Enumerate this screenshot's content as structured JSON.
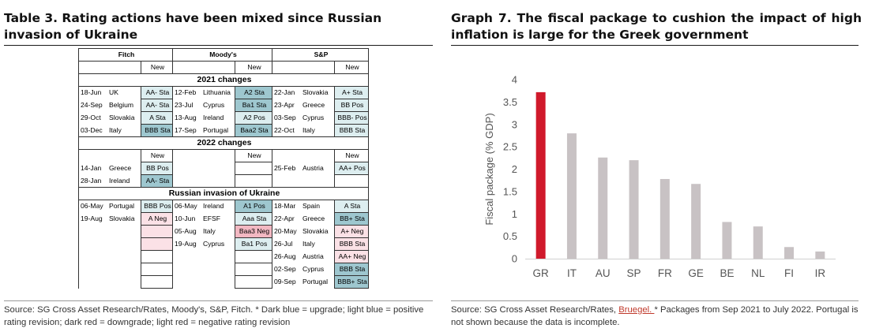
{
  "left": {
    "title": "Table 3. Rating actions have been mixed since Russian invasion of Ukraine",
    "source": "Source: SG Cross Asset Research/Rates, Moody's, S&P, Fitch. * Dark blue = upgrade; light blue = positive rating revision; dark red = downgrade; light red = negative rating revision",
    "agencies": [
      "Fitch",
      "Moody's",
      "S&P"
    ],
    "new_label": "New",
    "sections": [
      {
        "label": "2021 changes",
        "show_new": false,
        "rows": [
          [
            {
              "d": "18-Jun",
              "c": "UK",
              "r": "AA- Sta",
              "s": "lb"
            },
            {
              "d": "12-Feb",
              "c": "Lithuania",
              "r": "A2 Sta",
              "s": "db"
            },
            {
              "d": "22-Jan",
              "c": "Slovakia",
              "r": "A+ Sta",
              "s": "lb"
            }
          ],
          [
            {
              "d": "24-Sep",
              "c": "Belgium",
              "r": "AA- Sta",
              "s": "lb"
            },
            {
              "d": "23-Jul",
              "c": "Cyprus",
              "r": "Ba1 Sta",
              "s": "db"
            },
            {
              "d": "23-Apr",
              "c": "Greece",
              "r": "BB Pos",
              "s": "lb"
            }
          ],
          [
            {
              "d": "29-Oct",
              "c": "Slovakia",
              "r": "A Sta",
              "s": "lb"
            },
            {
              "d": "13-Aug",
              "c": "Ireland",
              "r": "A2 Pos",
              "s": "lb"
            },
            {
              "d": "03-Sep",
              "c": "Cyprus",
              "r": "BBB- Pos",
              "s": "lb"
            }
          ],
          [
            {
              "d": "03-Dec",
              "c": "Italy",
              "r": "BBB Sta",
              "s": "db"
            },
            {
              "d": "17-Sep",
              "c": "Portugal",
              "r": "Baa2 Sta",
              "s": "db"
            },
            {
              "d": "22-Oct",
              "c": "Italy",
              "r": "BBB Sta",
              "s": "lb"
            }
          ]
        ]
      },
      {
        "label": "2022 changes",
        "show_new": true,
        "rows": [
          [
            {
              "d": "14-Jan",
              "c": "Greece",
              "r": "BB Pos",
              "s": "lb"
            },
            {
              "d": "",
              "c": "",
              "r": "",
              "s": ""
            },
            {
              "d": "25-Feb",
              "c": "Austria",
              "r": "AA+ Pos",
              "s": "lb"
            }
          ],
          [
            {
              "d": "28-Jan",
              "c": "Ireland",
              "r": "AA- Sta",
              "s": "db"
            },
            {
              "d": "",
              "c": "",
              "r": "",
              "s": ""
            },
            {
              "d": "",
              "c": "",
              "r": "",
              "s": ""
            }
          ]
        ]
      },
      {
        "label": "Russian invasion of Ukraine",
        "show_new": false,
        "rows": [
          [
            {
              "d": "06-May",
              "c": "Portugal",
              "r": "BBB Pos",
              "s": "lb"
            },
            {
              "d": "06-May",
              "c": "Ireland",
              "r": "A1 Pos",
              "s": "db"
            },
            {
              "d": "18-Mar",
              "c": "Spain",
              "r": "A Sta",
              "s": "lb"
            }
          ],
          [
            {
              "d": "19-Aug",
              "c": "Slovakia",
              "r": "A Neg",
              "s": "lr"
            },
            {
              "d": "10-Jun",
              "c": "EFSF",
              "r": "Aaa Sta",
              "s": "lb"
            },
            {
              "d": "22-Apr",
              "c": "Greece",
              "r": "BB+ Sta",
              "s": "db"
            }
          ],
          [
            {
              "d": "",
              "c": "",
              "r": "",
              "s": "lr"
            },
            {
              "d": "05-Aug",
              "c": "Italy",
              "r": "Baa3 Neg",
              "s": "dr"
            },
            {
              "d": "20-May",
              "c": "Slovakia",
              "r": "A+ Neg",
              "s": "lr"
            }
          ],
          [
            {
              "d": "",
              "c": "",
              "r": "",
              "s": "lr"
            },
            {
              "d": "19-Aug",
              "c": "Cyprus",
              "r": "Ba1 Pos",
              "s": "lb"
            },
            {
              "d": "26-Jul",
              "c": "Italy",
              "r": "BBB Sta",
              "s": "lr"
            }
          ],
          [
            {
              "d": "",
              "c": "",
              "r": "",
              "s": ""
            },
            {
              "d": "",
              "c": "",
              "r": "",
              "s": ""
            },
            {
              "d": "26-Aug",
              "c": "Austria",
              "r": "AA+ Neg",
              "s": "lr"
            }
          ],
          [
            {
              "d": "",
              "c": "",
              "r": "",
              "s": ""
            },
            {
              "d": "",
              "c": "",
              "r": "",
              "s": ""
            },
            {
              "d": "02-Sep",
              "c": "Cyprus",
              "r": "BBB Sta",
              "s": "db"
            }
          ],
          [
            {
              "d": "",
              "c": "",
              "r": "",
              "s": ""
            },
            {
              "d": "",
              "c": "",
              "r": "",
              "s": ""
            },
            {
              "d": "09-Sep",
              "c": "Portugal",
              "r": "BBB+ Sta",
              "s": "db"
            }
          ]
        ]
      }
    ],
    "colors": {
      "db": "#9ec7cf",
      "lb": "#ddeef0",
      "dr": "#f2b8c2",
      "lr": "#fbe1e6"
    }
  },
  "right": {
    "title": "Graph 7. The fiscal package to cushion the impact of high inflation is large for the Greek government",
    "source_prefix": "Source: SG Cross Asset Research/Rates, ",
    "source_link": "Bruegel. ",
    "source_suffix": "* Packages from Sep 2021 to July 2022. Portugal is not shown because the data is incomplete."
  },
  "chart_data": {
    "type": "bar",
    "categories": [
      "GR",
      "IT",
      "AU",
      "SP",
      "FR",
      "GE",
      "BE",
      "NL",
      "FI",
      "IR"
    ],
    "values": [
      3.72,
      2.8,
      2.26,
      2.2,
      1.78,
      1.67,
      0.82,
      0.72,
      0.26,
      0.16
    ],
    "ylabel": "Fiscal package (% GDP)",
    "ylim": [
      0,
      4
    ],
    "yticks": [
      "0",
      "0.5",
      "1",
      "1.5",
      "2",
      "2.5",
      "3",
      "3.5",
      "4"
    ],
    "grid": false,
    "colors": {
      "highlight": "#d0192b",
      "default": "#c8c2c4"
    }
  }
}
